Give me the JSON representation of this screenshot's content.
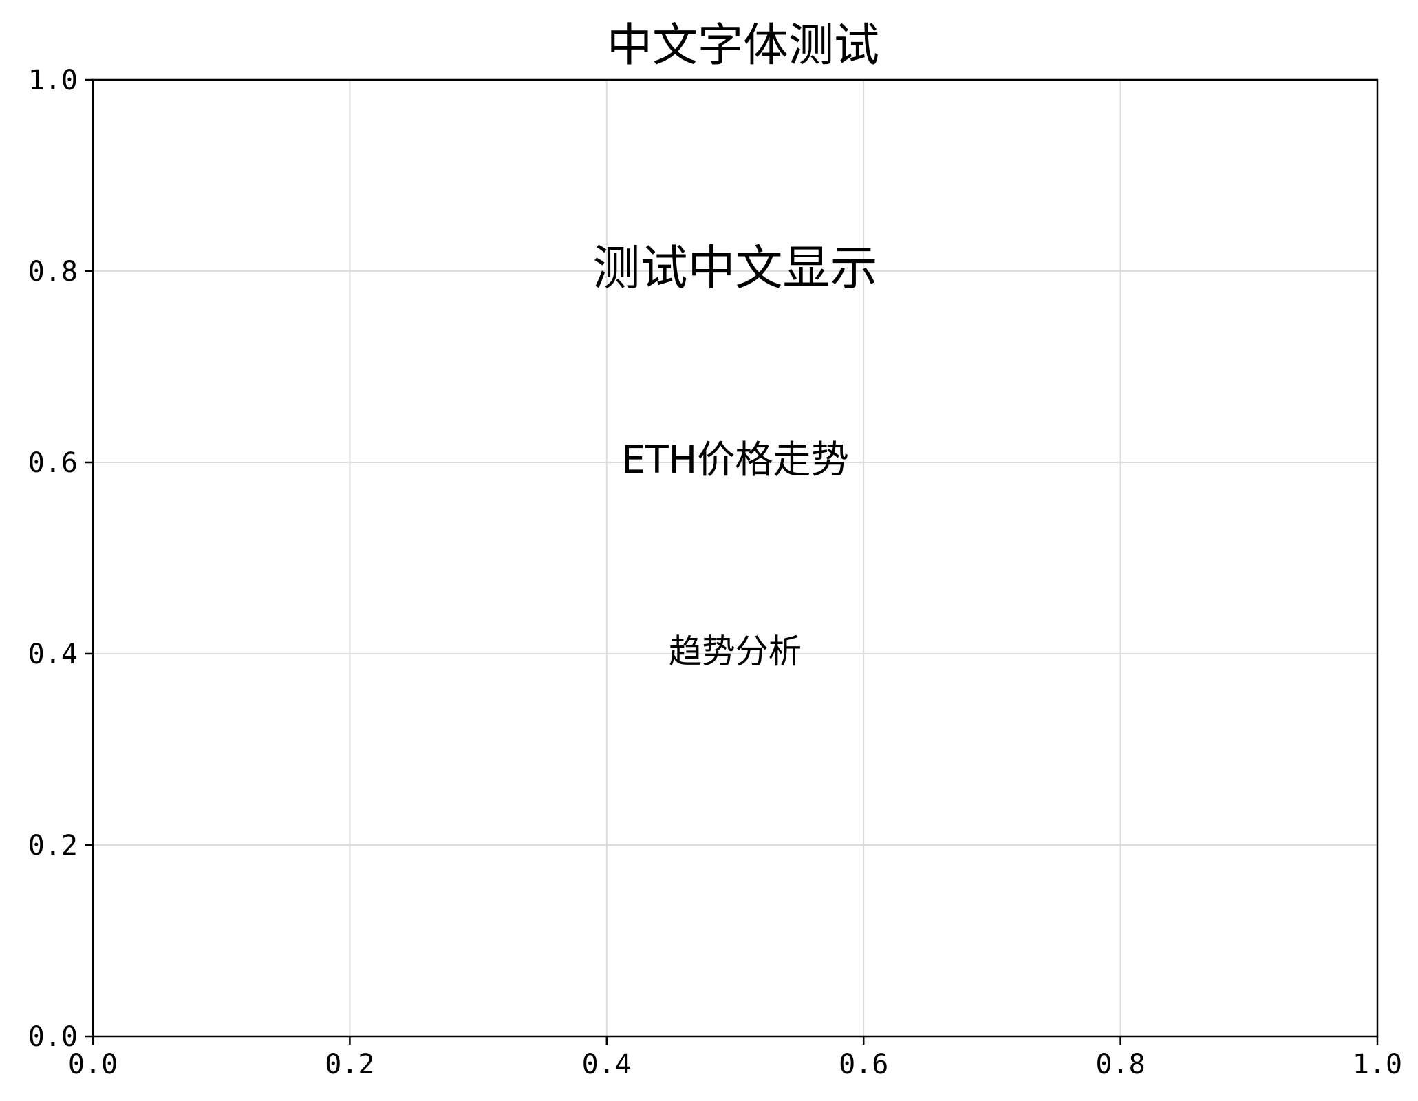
{
  "chart_data": {
    "type": "scatter",
    "title": "中文字体测试",
    "xlabel": "",
    "ylabel": "",
    "xlim": [
      0.0,
      1.0
    ],
    "ylim": [
      0.0,
      1.0
    ],
    "grid": true,
    "x_ticks": [
      {
        "value": 0.0,
        "label": "0.0"
      },
      {
        "value": 0.2,
        "label": "0.2"
      },
      {
        "value": 0.4,
        "label": "0.4"
      },
      {
        "value": 0.6,
        "label": "0.6"
      },
      {
        "value": 0.8,
        "label": "0.8"
      },
      {
        "value": 1.0,
        "label": "1.0"
      }
    ],
    "y_ticks": [
      {
        "value": 0.0,
        "label": "0.0"
      },
      {
        "value": 0.2,
        "label": "0.2"
      },
      {
        "value": 0.4,
        "label": "0.4"
      },
      {
        "value": 0.6,
        "label": "0.6"
      },
      {
        "value": 0.8,
        "label": "0.8"
      },
      {
        "value": 1.0,
        "label": "1.0"
      }
    ],
    "annotations": [
      {
        "text": "测试中文显示",
        "x": 0.5,
        "y": 0.8,
        "fontsize": 20
      },
      {
        "text": "ETH价格走势",
        "x": 0.5,
        "y": 0.6,
        "fontsize": 16
      },
      {
        "text": "趋势分析",
        "x": 0.5,
        "y": 0.4,
        "fontsize": 14
      }
    ]
  }
}
